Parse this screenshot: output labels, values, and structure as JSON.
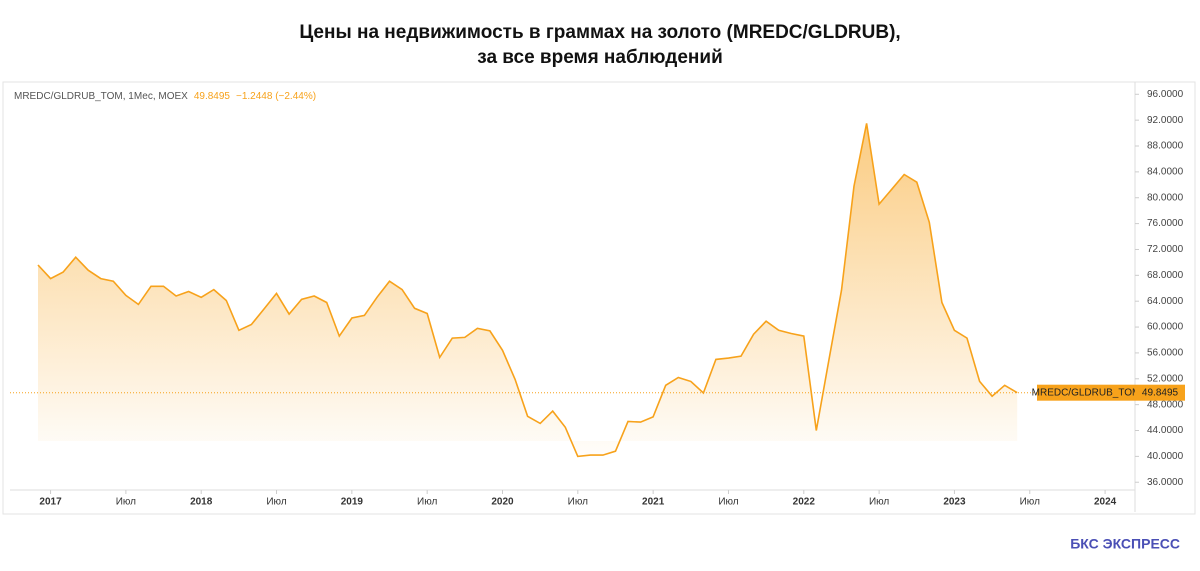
{
  "chart_data": {
    "type": "area",
    "title": "Цены на недвижимость в граммах на золото (MREDC/GLDRUB),",
    "subtitle": "за все время наблюдений",
    "legend_prefix": "MREDC/GLDRUB_TOM, 1Мес, MOEX",
    "change": "−1.2448 (−2.44%)",
    "brand": "БКС ЭКСПРЕСС",
    "x": [
      "2016-12",
      "2017-01",
      "2017-02",
      "2017-03",
      "2017-04",
      "2017-05",
      "2017-06",
      "2017-07",
      "2017-08",
      "2017-09",
      "2017-10",
      "2017-11",
      "2017-12",
      "2018-01",
      "2018-02",
      "2018-03",
      "2018-04",
      "2018-05",
      "2018-06",
      "2018-07",
      "2018-08",
      "2018-09",
      "2018-10",
      "2018-11",
      "2018-12",
      "2019-01",
      "2019-02",
      "2019-03",
      "2019-04",
      "2019-05",
      "2019-06",
      "2019-07",
      "2019-08",
      "2019-09",
      "2019-10",
      "2019-11",
      "2019-12",
      "2020-01",
      "2020-02",
      "2020-03",
      "2020-04",
      "2020-05",
      "2020-06",
      "2020-07",
      "2020-08",
      "2020-09",
      "2020-10",
      "2020-11",
      "2020-12",
      "2021-01",
      "2021-02",
      "2021-03",
      "2021-04",
      "2021-05",
      "2021-06",
      "2021-07",
      "2021-08",
      "2021-09",
      "2021-10",
      "2021-11",
      "2021-12",
      "2022-01",
      "2022-02",
      "2022-03",
      "2022-04",
      "2022-05",
      "2022-06",
      "2022-07",
      "2022-08",
      "2022-09",
      "2022-10",
      "2022-11",
      "2022-12",
      "2023-01",
      "2023-02",
      "2023-03",
      "2023-04",
      "2023-05",
      "2023-06"
    ],
    "series": [
      {
        "name": "MREDC/GLDRUB_TOM",
        "color": "#f7a21b",
        "values": [
          69.6,
          67.5,
          68.5,
          70.8,
          68.8,
          67.5,
          67.1,
          64.9,
          63.5,
          66.3,
          66.3,
          64.8,
          65.5,
          64.6,
          65.8,
          64.1,
          59.5,
          60.4,
          62.8,
          65.2,
          62.0,
          64.3,
          64.8,
          63.8,
          58.6,
          61.4,
          61.8,
          64.6,
          67.1,
          65.8,
          62.9,
          62.1,
          55.3,
          58.3,
          58.4,
          59.8,
          59.4,
          56.4,
          51.9,
          46.2,
          45.1,
          47.0,
          44.5,
          40.0,
          40.2,
          40.2,
          40.8,
          45.4,
          45.3,
          46.1,
          51.0,
          52.2,
          51.6,
          49.8,
          55.0,
          55.2,
          55.5,
          58.9,
          60.9,
          59.5,
          59.0,
          58.6,
          44.0,
          54.9,
          65.7,
          81.8,
          91.5,
          79.0,
          81.3,
          83.6,
          82.4,
          76.2,
          63.8,
          59.5,
          58.3,
          51.6,
          49.3,
          51.0,
          49.8495
        ]
      }
    ],
    "ylim": [
      34.8,
      97.9
    ],
    "yticks": [
      {
        "value": 36,
        "label": "36.0000"
      },
      {
        "value": 40,
        "label": "40.0000"
      },
      {
        "value": 44,
        "label": "44.0000"
      },
      {
        "value": 48,
        "label": "48.0000"
      },
      {
        "value": 52,
        "label": "52.0000"
      },
      {
        "value": 56,
        "label": "56.0000"
      },
      {
        "value": 60,
        "label": "60.0000"
      },
      {
        "value": 64,
        "label": "64.0000"
      },
      {
        "value": 68,
        "label": "68.0000"
      },
      {
        "value": 72,
        "label": "72.0000"
      },
      {
        "value": 76,
        "label": "76.0000"
      },
      {
        "value": 80,
        "label": "80.0000"
      },
      {
        "value": 84,
        "label": "84.0000"
      },
      {
        "value": 88,
        "label": "88.0000"
      },
      {
        "value": 92,
        "label": "92.0000"
      },
      {
        "value": 96,
        "label": "96.0000"
      }
    ],
    "xticks": [
      {
        "value": "2017-01",
        "label": "2017"
      },
      {
        "value": "2017-07",
        "label": "Июл"
      },
      {
        "value": "2018-01",
        "label": "2018"
      },
      {
        "value": "2018-07",
        "label": "Июл"
      },
      {
        "value": "2019-01",
        "label": "2019"
      },
      {
        "value": "2019-07",
        "label": "Июл"
      },
      {
        "value": "2020-01",
        "label": "2020"
      },
      {
        "value": "2020-07",
        "label": "Июл"
      },
      {
        "value": "2021-01",
        "label": "2021"
      },
      {
        "value": "2021-07",
        "label": "Июл"
      },
      {
        "value": "2022-01",
        "label": "2022"
      },
      {
        "value": "2022-07",
        "label": "Июл"
      },
      {
        "value": "2023-01",
        "label": "2023"
      },
      {
        "value": "2023-07",
        "label": "Июл"
      },
      {
        "value": "2024-01",
        "label": "2024"
      }
    ]
  }
}
